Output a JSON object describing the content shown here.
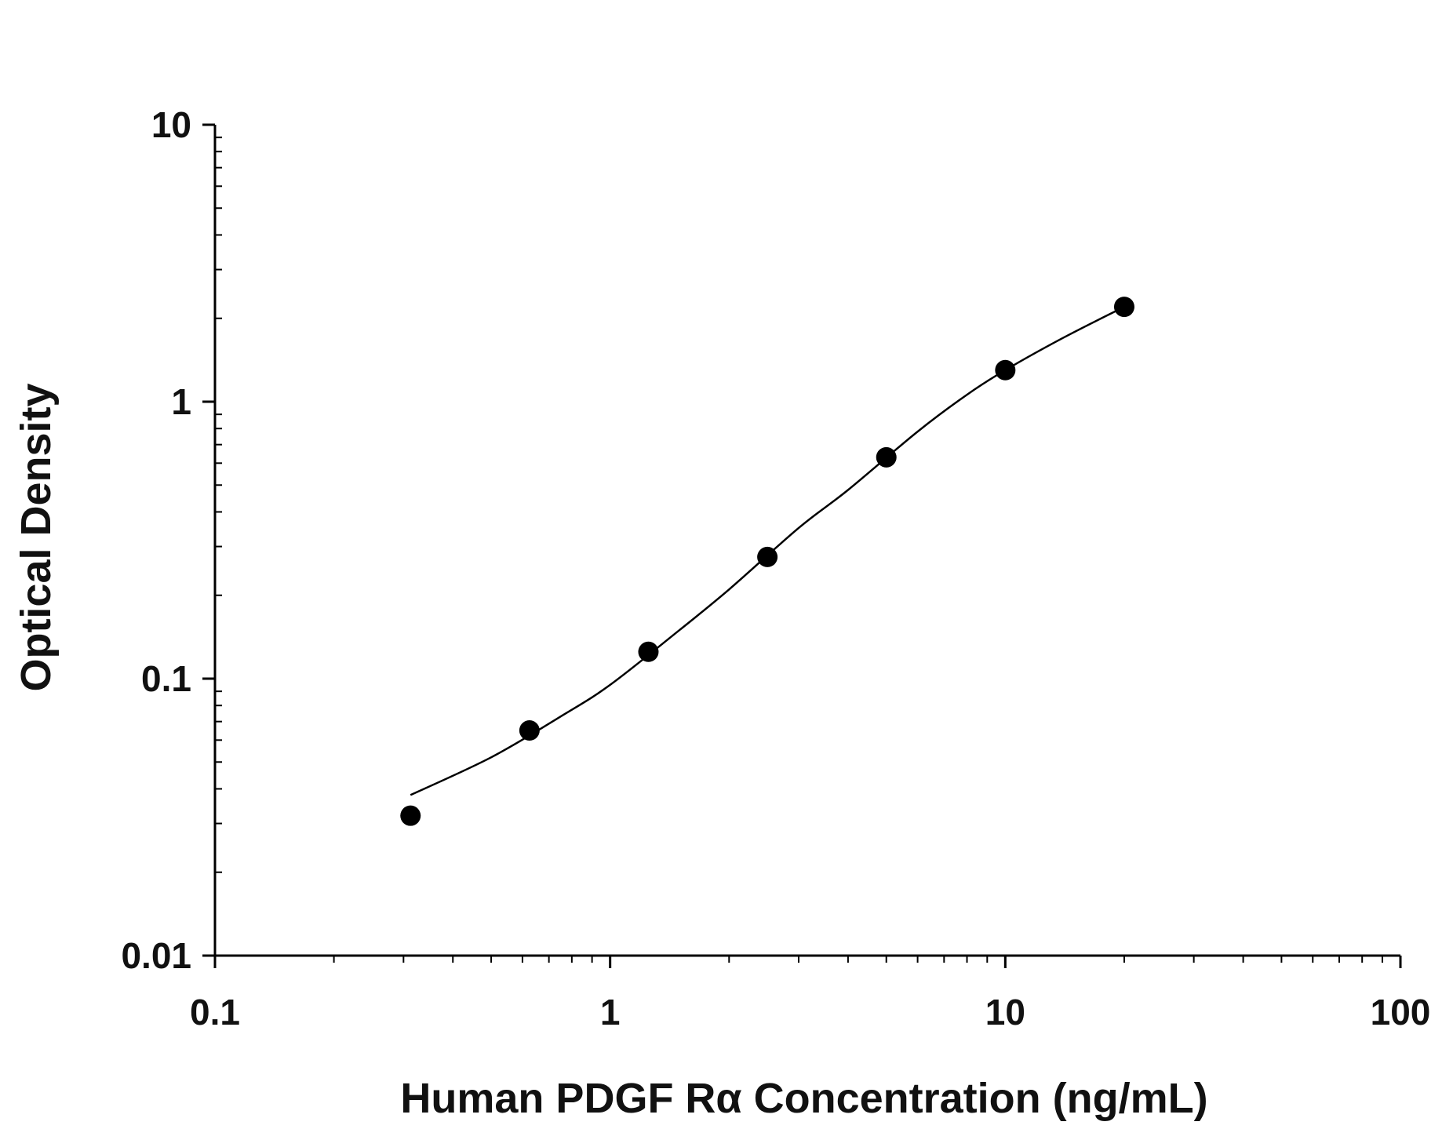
{
  "chart_data": {
    "type": "scatter",
    "xscale": "log",
    "yscale": "log",
    "xlim": [
      0.1,
      100
    ],
    "ylim": [
      0.01,
      10
    ],
    "xlabel": "Human PDGF Rα Concentration (ng/mL)",
    "ylabel": "Optical Density",
    "x_ticks": [
      {
        "value": 0.1,
        "label": "0.1"
      },
      {
        "value": 1,
        "label": "1"
      },
      {
        "value": 10,
        "label": "10"
      },
      {
        "value": 100,
        "label": "100"
      }
    ],
    "y_ticks": [
      {
        "value": 0.01,
        "label": "0.01"
      },
      {
        "value": 0.1,
        "label": "0.1"
      },
      {
        "value": 1,
        "label": "1"
      },
      {
        "value": 10,
        "label": "10"
      }
    ],
    "grid": false,
    "legend": "none",
    "series": [
      {
        "points": [
          {
            "x": 0.3125,
            "y": 0.032
          },
          {
            "x": 0.625,
            "y": 0.065
          },
          {
            "x": 1.25,
            "y": 0.125
          },
          {
            "x": 2.5,
            "y": 0.275
          },
          {
            "x": 5,
            "y": 0.63
          },
          {
            "x": 10,
            "y": 1.3
          },
          {
            "x": 20,
            "y": 2.2
          }
        ],
        "fit_curve": [
          {
            "x": 0.3125,
            "y": 0.038
          },
          {
            "x": 0.5,
            "y": 0.052
          },
          {
            "x": 0.75,
            "y": 0.073
          },
          {
            "x": 1.0,
            "y": 0.095
          },
          {
            "x": 1.5,
            "y": 0.15
          },
          {
            "x": 2.0,
            "y": 0.21
          },
          {
            "x": 3.0,
            "y": 0.35
          },
          {
            "x": 4.0,
            "y": 0.48
          },
          {
            "x": 6.0,
            "y": 0.78
          },
          {
            "x": 8.0,
            "y": 1.06
          },
          {
            "x": 10,
            "y": 1.3
          },
          {
            "x": 14,
            "y": 1.7
          },
          {
            "x": 20,
            "y": 2.2
          }
        ],
        "marker_color": "#000000",
        "line_color": "#000000"
      }
    ]
  }
}
